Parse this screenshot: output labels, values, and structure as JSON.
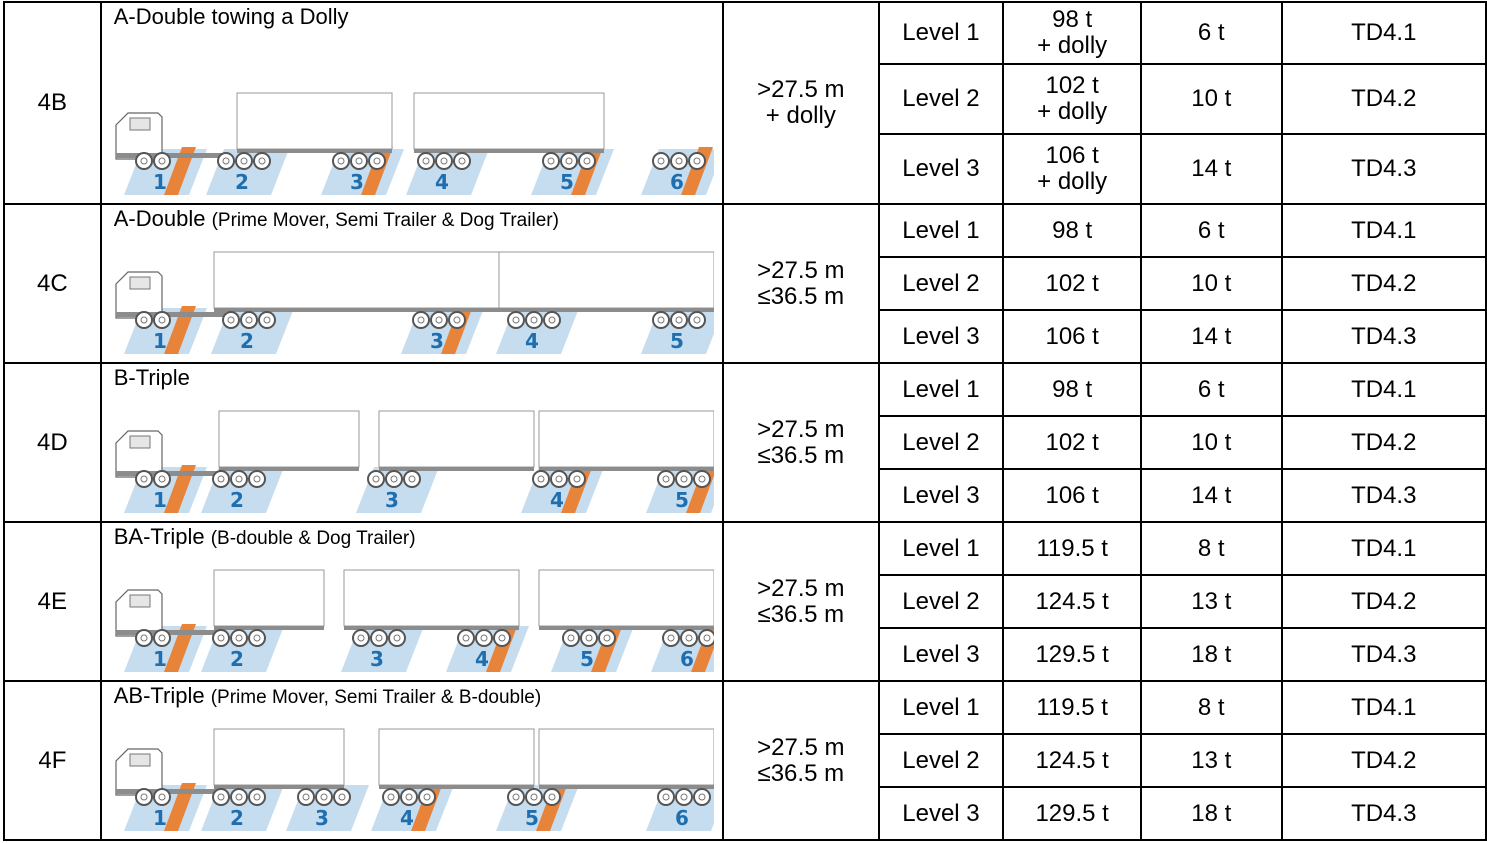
{
  "rows": [
    {
      "class": "4B",
      "name": "A-Double towing a Dolly",
      "subtitle": "",
      "length": [
        ">27.5 m",
        "+ dolly"
      ],
      "axles": [
        "1",
        "2",
        "3",
        "4",
        "5",
        "6"
      ],
      "levels": [
        {
          "level": "Level 1",
          "mass": [
            "98 t",
            "+ dolly"
          ],
          "dyn": "6 t",
          "code": "TD4.1"
        },
        {
          "level": "Level 2",
          "mass": [
            "102 t",
            "+ dolly"
          ],
          "dyn": "10 t",
          "code": "TD4.2"
        },
        {
          "level": "Level 3",
          "mass": [
            "106 t",
            "+ dolly"
          ],
          "dyn": "14 t",
          "code": "TD4.3"
        }
      ]
    },
    {
      "class": "4C",
      "name": "A-Double",
      "subtitle": "(Prime Mover, Semi Trailer & Dog Trailer)",
      "length": [
        ">27.5 m",
        "≤36.5 m"
      ],
      "axles": [
        "1",
        "2",
        "3",
        "4",
        "5"
      ],
      "levels": [
        {
          "level": "Level 1",
          "mass": [
            "98 t"
          ],
          "dyn": "6 t",
          "code": "TD4.1"
        },
        {
          "level": "Level 2",
          "mass": [
            "102 t"
          ],
          "dyn": "10 t",
          "code": "TD4.2"
        },
        {
          "level": "Level 3",
          "mass": [
            "106 t"
          ],
          "dyn": "14 t",
          "code": "TD4.3"
        }
      ]
    },
    {
      "class": "4D",
      "name": "B-Triple",
      "subtitle": "",
      "length": [
        ">27.5 m",
        "≤36.5 m"
      ],
      "axles": [
        "1",
        "2",
        "3",
        "4",
        "5"
      ],
      "levels": [
        {
          "level": "Level 1",
          "mass": [
            "98 t"
          ],
          "dyn": "6 t",
          "code": "TD4.1"
        },
        {
          "level": "Level 2",
          "mass": [
            "102 t"
          ],
          "dyn": "10 t",
          "code": "TD4.2"
        },
        {
          "level": "Level 3",
          "mass": [
            "106 t"
          ],
          "dyn": "14 t",
          "code": "TD4.3"
        }
      ]
    },
    {
      "class": "4E",
      "name": "BA-Triple",
      "subtitle": "(B-double & Dog Trailer)",
      "length": [
        ">27.5 m",
        "≤36.5 m"
      ],
      "axles": [
        "1",
        "2",
        "3",
        "4",
        "5",
        "6"
      ],
      "levels": [
        {
          "level": "Level 1",
          "mass": [
            "119.5 t"
          ],
          "dyn": "8 t",
          "code": "TD4.1"
        },
        {
          "level": "Level 2",
          "mass": [
            "124.5 t"
          ],
          "dyn": "13 t",
          "code": "TD4.2"
        },
        {
          "level": "Level 3",
          "mass": [
            "129.5 t"
          ],
          "dyn": "18 t",
          "code": "TD4.3"
        }
      ]
    },
    {
      "class": "4F",
      "name": "AB-Triple",
      "subtitle": "(Prime Mover, Semi Trailer & B-double)",
      "length": [
        ">27.5 m",
        "≤36.5 m"
      ],
      "axles": [
        "1",
        "2",
        "3",
        "4",
        "5",
        "6"
      ],
      "levels": [
        {
          "level": "Level 1",
          "mass": [
            "119.5 t"
          ],
          "dyn": "8 t",
          "code": "TD4.1"
        },
        {
          "level": "Level 2",
          "mass": [
            "124.5 t"
          ],
          "dyn": "13 t",
          "code": "TD4.2"
        },
        {
          "level": "Level 3",
          "mass": [
            "129.5 t"
          ],
          "dyn": "18 t",
          "code": "TD4.3"
        }
      ]
    }
  ],
  "colors": {
    "axle_band_blue": "#c6ddf0",
    "axle_band_orange": "#e8833a",
    "axle_number": "#1f6fb0",
    "vehicle_grey": "#8c8c8c"
  }
}
